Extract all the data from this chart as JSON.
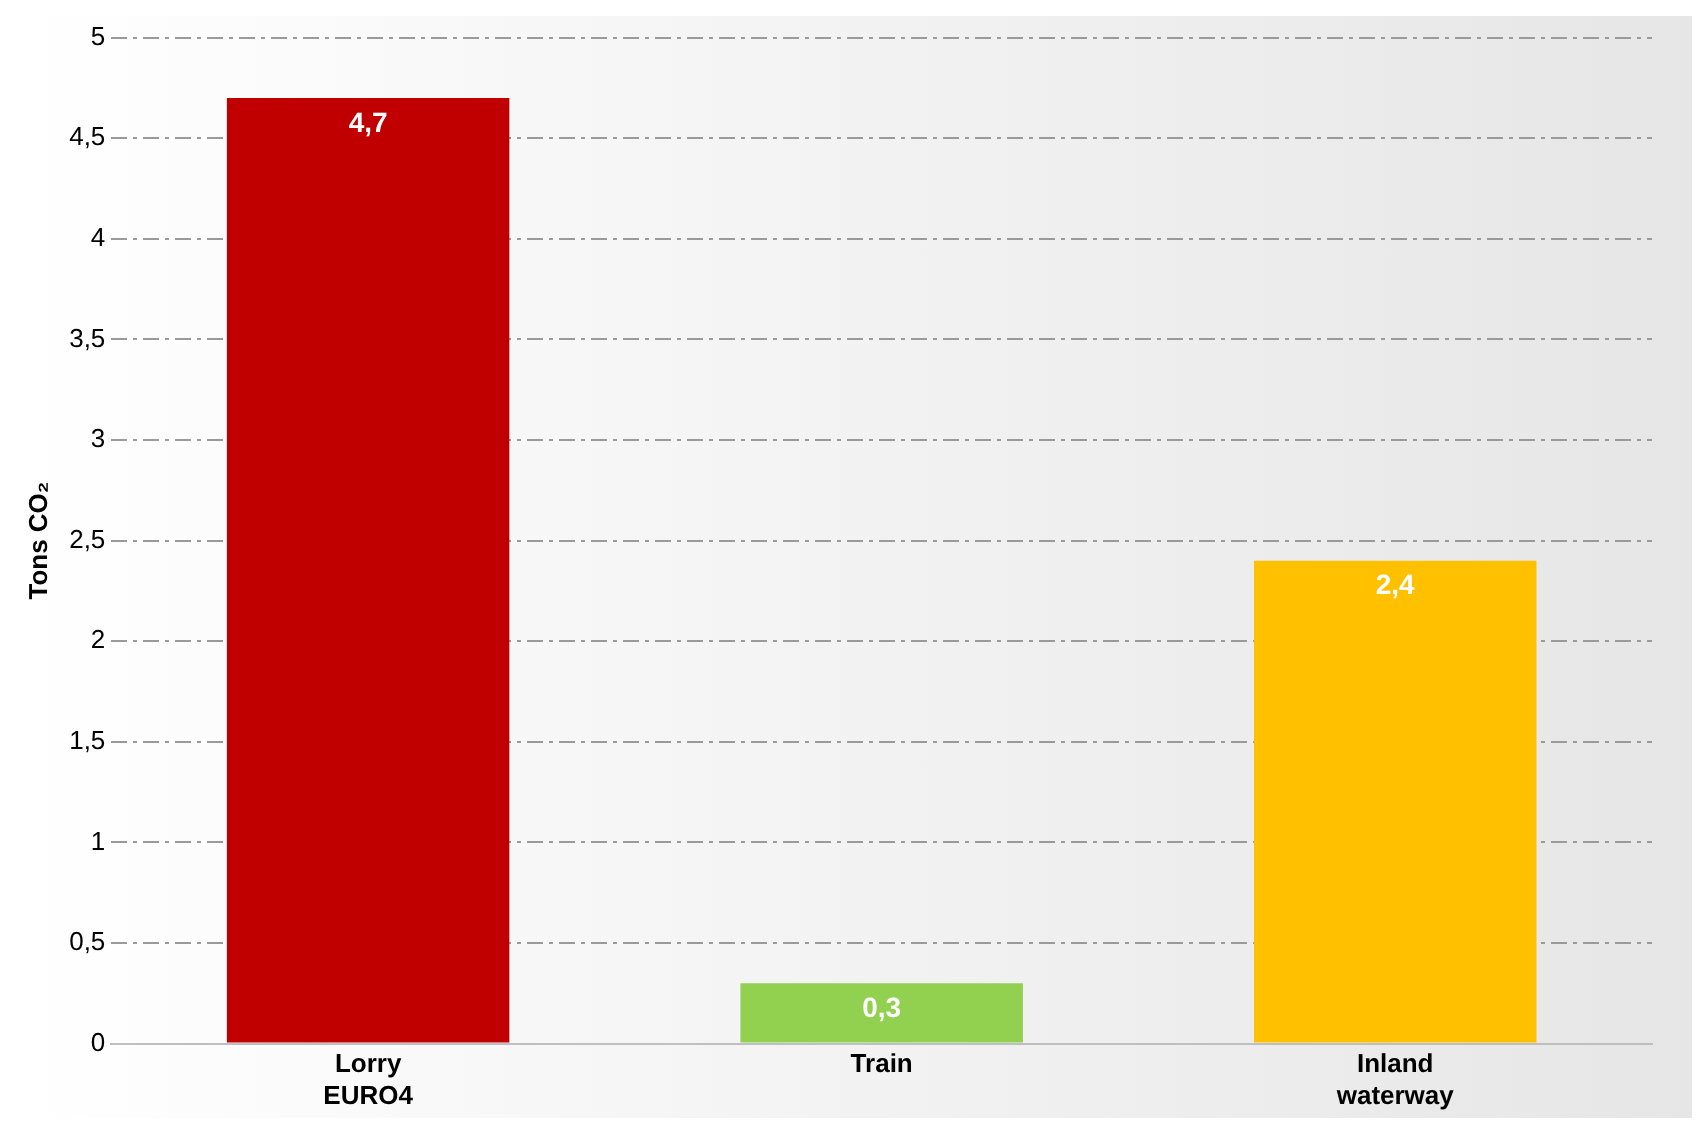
{
  "chart_data": {
    "type": "bar",
    "ylabel": "Tons CO₂",
    "categories": [
      "Lorry\nEURO4",
      "Train",
      "Inland\nwaterway"
    ],
    "values": [
      4.7,
      0.3,
      2.4
    ],
    "colors": [
      "#c00000",
      "#92d050",
      "#ffc000"
    ],
    "value_labels": [
      "4,7",
      "0,3",
      "2,4"
    ],
    "ylim": [
      0,
      5
    ],
    "yticks": [
      0,
      {
        "value": 0.5,
        "label": "0,5"
      },
      1,
      {
        "value": 1.5,
        "label": "1,5"
      },
      2,
      {
        "value": 2.5,
        "label": "2,5"
      },
      3,
      {
        "value": 3.5,
        "label": "3,5"
      },
      4,
      {
        "value": 4.5,
        "label": "4,5"
      },
      5
    ],
    "grid": "y",
    "legend": false
  }
}
